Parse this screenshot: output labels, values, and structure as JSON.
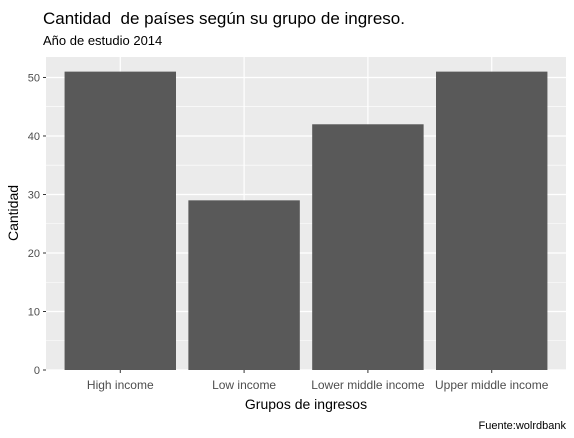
{
  "chart_data": {
    "type": "bar",
    "title": "Cantidad  de países según su grupo de ingreso.",
    "subtitle": "Año de estudio 2014",
    "xlabel": "Grupos de ingresos",
    "ylabel": "Cantidad",
    "caption": "Fuente:wolrdbank",
    "categories": [
      "High income",
      "Low income",
      "Lower middle income",
      "Upper middle income"
    ],
    "values": [
      51,
      29,
      42,
      51
    ],
    "ylim": [
      0,
      53.5
    ],
    "yticks": [
      "0",
      "10",
      "20",
      "30",
      "40",
      "50"
    ],
    "grid": true,
    "legend": "none",
    "colors": {
      "bar": "#595959",
      "panel": "#ebebeb",
      "grid_major": "#ffffff",
      "text": "#000000",
      "tick_text": "#4d4d4d",
      "tick_mark": "#333333"
    }
  }
}
